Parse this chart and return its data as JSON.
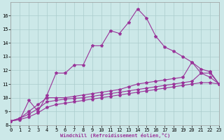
{
  "xlabel": "Windchill (Refroidissement éolien,°C)",
  "background_color": "#cce8e8",
  "line_color": "#993399",
  "grid_color": "#aacccc",
  "x_values": [
    0,
    1,
    2,
    3,
    4,
    5,
    6,
    7,
    8,
    9,
    10,
    11,
    12,
    13,
    14,
    15,
    16,
    17,
    18,
    19,
    20,
    21,
    22,
    23
  ],
  "line1_y": [
    8.3,
    8.4,
    9.8,
    9.0,
    10.2,
    11.8,
    11.8,
    12.4,
    12.4,
    13.8,
    13.8,
    14.9,
    14.7,
    15.5,
    16.5,
    15.8,
    14.5,
    13.7,
    13.4,
    13.0,
    12.6,
    12.1,
    11.9,
    11.0
  ],
  "line2_y": [
    8.3,
    8.5,
    9.0,
    9.5,
    10.0,
    10.0,
    10.0,
    10.1,
    10.2,
    10.3,
    10.4,
    10.5,
    10.6,
    10.8,
    11.0,
    11.1,
    11.2,
    11.3,
    11.4,
    11.5,
    12.6,
    11.8,
    11.8,
    11.0
  ],
  "line3_y": [
    8.3,
    8.5,
    8.8,
    9.2,
    9.7,
    9.8,
    9.9,
    9.95,
    10.0,
    10.1,
    10.2,
    10.3,
    10.4,
    10.5,
    10.6,
    10.7,
    10.8,
    10.9,
    11.0,
    11.1,
    11.2,
    11.8,
    11.5,
    11.0
  ],
  "line4_y": [
    8.3,
    8.4,
    8.6,
    8.9,
    9.3,
    9.5,
    9.6,
    9.7,
    9.8,
    9.9,
    10.0,
    10.1,
    10.2,
    10.3,
    10.4,
    10.5,
    10.6,
    10.7,
    10.8,
    10.9,
    11.0,
    11.1,
    11.1,
    11.0
  ],
  "ylim": [
    8,
    17
  ],
  "xlim": [
    0,
    23
  ],
  "yticks": [
    8,
    9,
    10,
    11,
    12,
    13,
    14,
    15,
    16
  ],
  "xticks": [
    0,
    1,
    2,
    3,
    4,
    5,
    6,
    7,
    8,
    9,
    10,
    11,
    12,
    13,
    14,
    15,
    16,
    17,
    18,
    19,
    20,
    21,
    22,
    23
  ],
  "marker": "*",
  "markersize": 3,
  "linewidth": 0.8,
  "tick_fontsize": 5,
  "xlabel_fontsize": 5,
  "xlabel_color": "#993399"
}
